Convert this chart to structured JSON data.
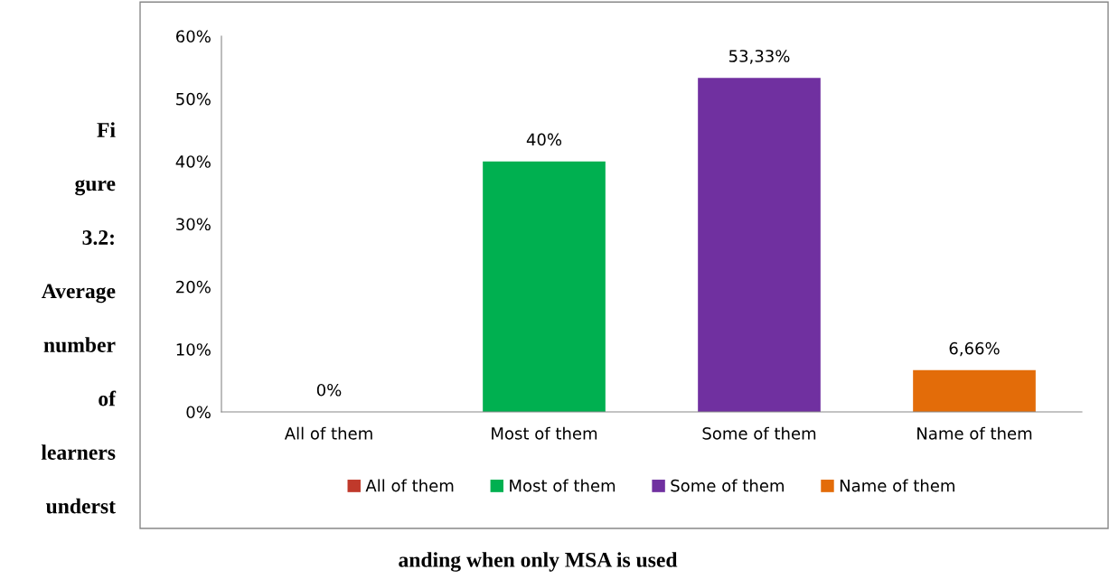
{
  "chart_data": {
    "type": "bar",
    "categories": [
      "All of them",
      "Most of them",
      "Some of them",
      "Name of them"
    ],
    "series": [
      {
        "name": "All of them",
        "color": "#c0392b",
        "values": [
          0,
          null,
          null,
          null
        ],
        "value_labels": [
          "0%",
          null,
          null,
          null
        ]
      },
      {
        "name": "Most of them",
        "color": "#00b050",
        "values": [
          null,
          40,
          null,
          null
        ],
        "value_labels": [
          null,
          "40%",
          null,
          null
        ]
      },
      {
        "name": "Some of them",
        "color": "#7030a0",
        "values": [
          null,
          null,
          53.33,
          null
        ],
        "value_labels": [
          null,
          null,
          "53,33%",
          null
        ]
      },
      {
        "name": "Name of them",
        "color": "#e36c09",
        "values": [
          null,
          null,
          null,
          6.66
        ],
        "value_labels": [
          null,
          null,
          null,
          "6,66%"
        ]
      }
    ],
    "ylim": [
      0,
      60
    ],
    "yticks": [
      {
        "value": 0,
        "label": "0%"
      },
      {
        "value": 10,
        "label": "10%"
      },
      {
        "value": 20,
        "label": "20%"
      },
      {
        "value": 30,
        "label": "30%"
      },
      {
        "value": 40,
        "label": "40%"
      },
      {
        "value": 50,
        "label": "50%"
      },
      {
        "value": 60,
        "label": "60%"
      }
    ],
    "grid": false,
    "legend": "bottom",
    "annotations": [
      "Fi",
      "gure",
      "3.2:",
      "Average",
      "number",
      "of",
      "learners",
      "underst",
      "anding when only MSA is used"
    ]
  }
}
